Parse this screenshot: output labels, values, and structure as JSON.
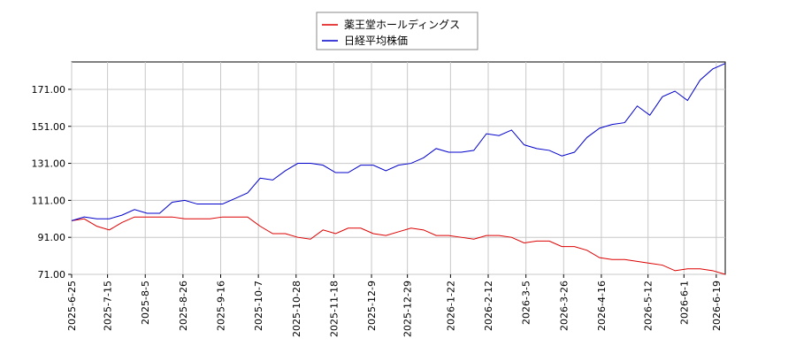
{
  "chart_data": {
    "type": "line",
    "x": [
      "2025-06-25",
      "2025-07-02",
      "2025-07-09",
      "2025-07-16",
      "2025-07-23",
      "2025-07-30",
      "2025-08-06",
      "2025-08-13",
      "2025-08-20",
      "2025-08-27",
      "2025-09-03",
      "2025-09-10",
      "2025-09-17",
      "2025-09-24",
      "2025-10-01",
      "2025-10-08",
      "2025-10-15",
      "2025-10-22",
      "2025-10-29",
      "2025-11-05",
      "2025-11-12",
      "2025-11-19",
      "2025-11-26",
      "2025-12-03",
      "2025-12-10",
      "2025-12-17",
      "2025-12-24",
      "2025-12-31",
      "2026-01-07",
      "2026-01-14",
      "2026-01-21",
      "2026-01-28",
      "2026-02-04",
      "2026-02-11",
      "2026-02-18",
      "2026-02-25",
      "2026-03-04",
      "2026-03-11",
      "2026-03-18",
      "2026-03-25",
      "2026-04-01",
      "2026-04-08",
      "2026-04-15",
      "2026-04-22",
      "2026-04-29",
      "2026-05-06",
      "2026-05-13",
      "2026-05-20",
      "2026-05-27",
      "2026-06-03",
      "2026-06-10",
      "2026-06-17",
      "2026-06-24"
    ],
    "series": [
      {
        "name": "薬王堂ホールディングス",
        "color": "#dd0000",
        "values": [
          100,
          101,
          97,
          95,
          99,
          102,
          102,
          102,
          102,
          101,
          101,
          101,
          102,
          102,
          102,
          97,
          93,
          93,
          91,
          90,
          95,
          93,
          96,
          96,
          93,
          92,
          94,
          96,
          95,
          92,
          92,
          91,
          90,
          92,
          92,
          91,
          88,
          89,
          89,
          86,
          86,
          84,
          80,
          79,
          79,
          78,
          77,
          76,
          73,
          74,
          74,
          73,
          71
        ]
      },
      {
        "name": "日経平均株価",
        "color": "#0000cc",
        "values": [
          100,
          102,
          101,
          101,
          103,
          106,
          104,
          104,
          110,
          111,
          109,
          109,
          109,
          112,
          115,
          123,
          122,
          127,
          131,
          131,
          130,
          126,
          126,
          130,
          130,
          127,
          130,
          131,
          134,
          139,
          137,
          137,
          138,
          147,
          146,
          149,
          141,
          139,
          138,
          135,
          137,
          145,
          150,
          152,
          153,
          162,
          157,
          167,
          170,
          165,
          176,
          182,
          185
        ]
      }
    ],
    "xlim": [
      "2025-06-25",
      "2026-06-24"
    ],
    "xticks": [
      {
        "value": "2025-06-25",
        "label": "2025-6-25"
      },
      {
        "value": "2025-07-15",
        "label": "2025-7-15"
      },
      {
        "value": "2025-08-05",
        "label": "2025-8-5"
      },
      {
        "value": "2025-08-26",
        "label": "2025-8-26"
      },
      {
        "value": "2025-09-16",
        "label": "2025-9-16"
      },
      {
        "value": "2025-10-07",
        "label": "2025-10-7"
      },
      {
        "value": "2025-10-28",
        "label": "2025-10-28"
      },
      {
        "value": "2025-11-18",
        "label": "2025-11-18"
      },
      {
        "value": "2025-12-09",
        "label": "2025-12-9"
      },
      {
        "value": "2025-12-29",
        "label": "2025-12-29"
      },
      {
        "value": "2026-01-22",
        "label": "2026-1-22"
      },
      {
        "value": "2026-02-12",
        "label": "2026-2-12"
      },
      {
        "value": "2026-03-05",
        "label": "2026-3-5"
      },
      {
        "value": "2026-03-26",
        "label": "2026-3-26"
      },
      {
        "value": "2026-04-16",
        "label": "2026-4-16"
      },
      {
        "value": "2026-05-12",
        "label": "2026-5-12"
      },
      {
        "value": "2026-06-01",
        "label": "2026-6-1"
      },
      {
        "value": "2026-06-19",
        "label": "2026-6-19"
      }
    ],
    "ylim": [
      71,
      185.8
    ],
    "yticks": [
      {
        "value": 71,
        "label": "71.00"
      },
      {
        "value": 91,
        "label": "91.00"
      },
      {
        "value": 111,
        "label": "111.00"
      },
      {
        "value": 131,
        "label": "131.00"
      },
      {
        "value": 151,
        "label": "151.00"
      },
      {
        "value": 171,
        "label": "171.00"
      }
    ],
    "grid": true
  }
}
